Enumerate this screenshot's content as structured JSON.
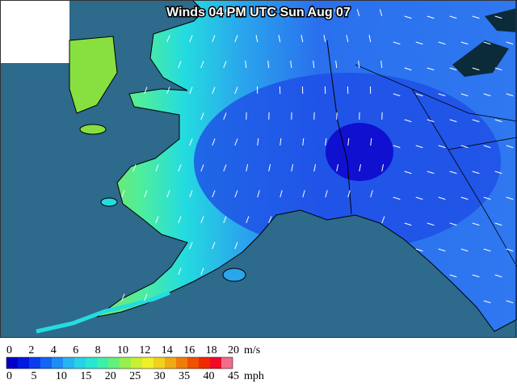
{
  "map": {
    "title": "Winds 04 PM UTC Sun Aug 07"
  },
  "legend": {
    "ms_unit": "m/s",
    "ms_ticks": [
      0,
      2,
      4,
      6,
      8,
      10,
      12,
      14,
      16,
      18,
      20
    ],
    "mph_unit": "mph",
    "mph_ticks": [
      0,
      5,
      10,
      15,
      20,
      25,
      30,
      35,
      40,
      45
    ],
    "colors": [
      "#0000c8",
      "#0018e0",
      "#0a3cf0",
      "#1464f5",
      "#1e8cf5",
      "#28b4f0",
      "#28d2e6",
      "#28e6d2",
      "#3cf0aa",
      "#64f07d",
      "#96f050",
      "#c8f032",
      "#f0f028",
      "#f0d21e",
      "#f0aa14",
      "#f07d0a",
      "#f05000",
      "#f02800",
      "#f00a28",
      "#f06e8c"
    ]
  }
}
